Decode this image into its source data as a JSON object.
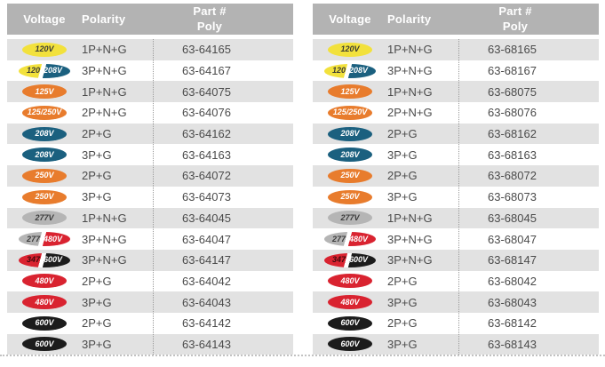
{
  "colors": {
    "header_bg": "#b3b3b3",
    "alt_row_bg": "#e2e2e2",
    "value_text": "#4b4b4b",
    "divider": "#9a9a9a"
  },
  "badge_styles": {
    "yellow": {
      "bg": "#f2e13c",
      "fg": "#3b3b33"
    },
    "orange": {
      "bg": "#e87c2d",
      "fg": "#ffffff"
    },
    "teal": {
      "bg": "#1b607f",
      "fg": "#ffffff"
    },
    "gray": {
      "bg": "#b5b5b5",
      "fg": "#3b3b3b"
    },
    "red": {
      "bg": "#d92330",
      "fg": "#ffffff"
    },
    "black": {
      "bg": "#1c1c1c",
      "fg": "#ffffff"
    }
  },
  "tables": [
    {
      "header": {
        "voltage": "Voltage",
        "polarity": "Polarity",
        "part_line1": "Part #",
        "part_line2": "Poly"
      },
      "rows": [
        {
          "badge": {
            "type": "solid",
            "style": "yellow",
            "label": "120V"
          },
          "polarity": "1P+N+G",
          "part": "63-64165"
        },
        {
          "badge": {
            "type": "split",
            "left_style": "yellow",
            "left_label": "120",
            "right_style": "teal",
            "right_label": "208V"
          },
          "polarity": "3P+N+G",
          "part": "63-64167"
        },
        {
          "badge": {
            "type": "solid",
            "style": "orange",
            "label": "125V"
          },
          "polarity": "1P+N+G",
          "part": "63-64075"
        },
        {
          "badge": {
            "type": "solid",
            "style": "orange",
            "label": "125/250V"
          },
          "polarity": "2P+N+G",
          "part": "63-64076"
        },
        {
          "badge": {
            "type": "solid",
            "style": "teal",
            "label": "208V"
          },
          "polarity": "2P+G",
          "part": "63-64162"
        },
        {
          "badge": {
            "type": "solid",
            "style": "teal",
            "label": "208V"
          },
          "polarity": "3P+G",
          "part": "63-64163"
        },
        {
          "badge": {
            "type": "solid",
            "style": "orange",
            "label": "250V"
          },
          "polarity": "2P+G",
          "part": "63-64072"
        },
        {
          "badge": {
            "type": "solid",
            "style": "orange",
            "label": "250V"
          },
          "polarity": "3P+G",
          "part": "63-64073"
        },
        {
          "badge": {
            "type": "solid",
            "style": "gray",
            "label": "277V"
          },
          "polarity": "1P+N+G",
          "part": "63-64045"
        },
        {
          "badge": {
            "type": "split",
            "left_style": "gray",
            "left_label": "277",
            "right_style": "red",
            "right_label": "480V"
          },
          "polarity": "3P+N+G",
          "part": "63-64047"
        },
        {
          "badge": {
            "type": "split",
            "left_style": "red",
            "left_label": "347",
            "left_fg": "#42090d",
            "right_style": "black",
            "right_label": "600V"
          },
          "polarity": "3P+N+G",
          "part": "63-64147"
        },
        {
          "badge": {
            "type": "solid",
            "style": "red",
            "label": "480V"
          },
          "polarity": "2P+G",
          "part": "63-64042"
        },
        {
          "badge": {
            "type": "solid",
            "style": "red",
            "label": "480V"
          },
          "polarity": "3P+G",
          "part": "63-64043"
        },
        {
          "badge": {
            "type": "solid",
            "style": "black",
            "label": "600V"
          },
          "polarity": "2P+G",
          "part": "63-64142"
        },
        {
          "badge": {
            "type": "solid",
            "style": "black",
            "label": "600V"
          },
          "polarity": "3P+G",
          "part": "63-64143"
        }
      ]
    },
    {
      "header": {
        "voltage": "Voltage",
        "polarity": "Polarity",
        "part_line1": "Part #",
        "part_line2": "Poly"
      },
      "rows": [
        {
          "badge": {
            "type": "solid",
            "style": "yellow",
            "label": "120V"
          },
          "polarity": "1P+N+G",
          "part": "63-68165"
        },
        {
          "badge": {
            "type": "split",
            "left_style": "yellow",
            "left_label": "120",
            "right_style": "teal",
            "right_label": "208V"
          },
          "polarity": "3P+N+G",
          "part": "63-68167"
        },
        {
          "badge": {
            "type": "solid",
            "style": "orange",
            "label": "125V"
          },
          "polarity": "1P+N+G",
          "part": "63-68075"
        },
        {
          "badge": {
            "type": "solid",
            "style": "orange",
            "label": "125/250V"
          },
          "polarity": "2P+N+G",
          "part": "63-68076"
        },
        {
          "badge": {
            "type": "solid",
            "style": "teal",
            "label": "208V"
          },
          "polarity": "2P+G",
          "part": "63-68162"
        },
        {
          "badge": {
            "type": "solid",
            "style": "teal",
            "label": "208V"
          },
          "polarity": "3P+G",
          "part": "63-68163"
        },
        {
          "badge": {
            "type": "solid",
            "style": "orange",
            "label": "250V"
          },
          "polarity": "2P+G",
          "part": "63-68072"
        },
        {
          "badge": {
            "type": "solid",
            "style": "orange",
            "label": "250V"
          },
          "polarity": "3P+G",
          "part": "63-68073"
        },
        {
          "badge": {
            "type": "solid",
            "style": "gray",
            "label": "277V"
          },
          "polarity": "1P+N+G",
          "part": "63-68045"
        },
        {
          "badge": {
            "type": "split",
            "left_style": "gray",
            "left_label": "277",
            "right_style": "red",
            "right_label": "480V"
          },
          "polarity": "3P+N+G",
          "part": "63-68047"
        },
        {
          "badge": {
            "type": "split",
            "left_style": "red",
            "left_label": "347",
            "left_fg": "#42090d",
            "right_style": "black",
            "right_label": "600V"
          },
          "polarity": "3P+N+G",
          "part": "63-68147"
        },
        {
          "badge": {
            "type": "solid",
            "style": "red",
            "label": "480V"
          },
          "polarity": "2P+G",
          "part": "63-68042"
        },
        {
          "badge": {
            "type": "solid",
            "style": "red",
            "label": "480V"
          },
          "polarity": "3P+G",
          "part": "63-68043"
        },
        {
          "badge": {
            "type": "solid",
            "style": "black",
            "label": "600V"
          },
          "polarity": "2P+G",
          "part": "63-68142"
        },
        {
          "badge": {
            "type": "solid",
            "style": "black",
            "label": "600V"
          },
          "polarity": "3P+G",
          "part": "63-68143"
        }
      ]
    }
  ]
}
